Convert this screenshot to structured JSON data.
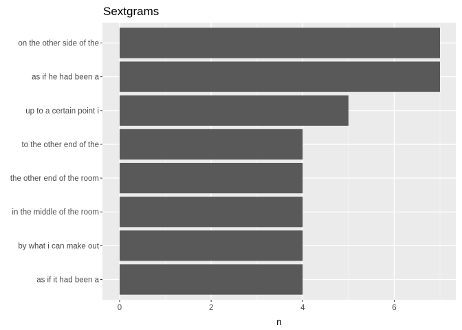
{
  "chart_data": {
    "type": "bar",
    "orientation": "horizontal",
    "title": "Sextgrams",
    "xlabel": "n",
    "ylabel": "",
    "categories": [
      "on the other side of the",
      "as if he had been a",
      "up to a certain point i",
      "to the other end of the",
      "the other end of the room",
      "in the middle of the room",
      "by what i can make out",
      "as if it had been a"
    ],
    "values": [
      7,
      7,
      5,
      4,
      4,
      4,
      4,
      4
    ],
    "xlim": [
      0,
      7
    ],
    "x_ticks": [
      0,
      2,
      4,
      6
    ],
    "x_tick_labels": [
      "0",
      "2",
      "4",
      "6"
    ],
    "grid": true,
    "legend": "none",
    "colors": {
      "bar": "#595959",
      "panel_background": "#ebebeb",
      "grid_major": "#ffffff",
      "grid_minor": "#f5f5f5",
      "tick_label": "#4d4d4d",
      "tick_mark": "#333333"
    }
  }
}
